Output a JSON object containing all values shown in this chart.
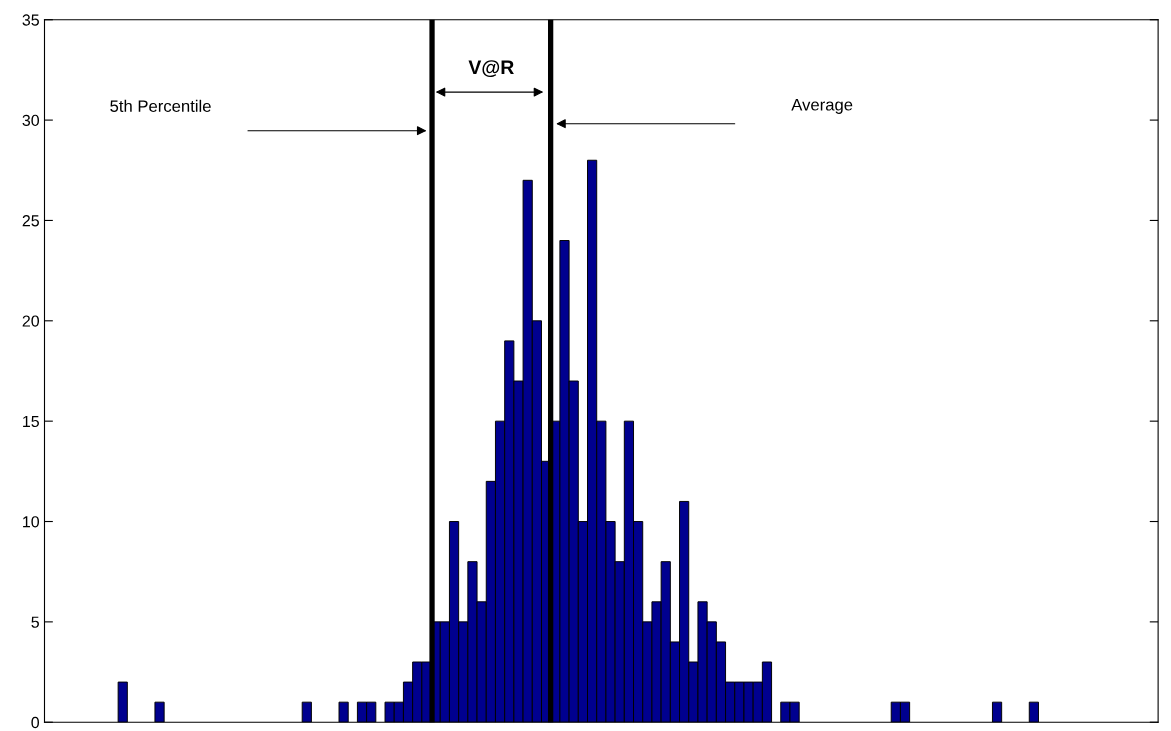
{
  "chart_data": {
    "type": "bar",
    "categories": [
      null,
      null,
      null,
      null,
      null,
      null,
      null,
      null,
      null,
      null,
      null,
      null,
      null,
      null,
      null,
      null,
      null,
      null,
      null,
      null,
      null,
      null,
      null,
      null,
      null,
      null,
      null,
      null,
      null,
      null,
      null,
      null,
      null,
      null,
      null,
      null,
      null,
      null,
      null,
      null,
      null,
      null,
      null,
      null,
      null,
      null,
      null,
      null,
      null,
      null,
      null,
      null,
      null,
      null,
      null,
      null,
      null,
      null,
      null,
      null,
      null,
      null,
      null,
      null,
      null,
      null,
      null,
      null,
      null,
      null,
      null,
      null,
      null,
      null,
      null,
      null,
      null,
      null,
      null,
      null,
      null,
      null,
      null,
      null,
      null,
      null,
      null,
      null,
      null,
      null,
      null,
      null,
      null,
      null,
      null,
      null,
      null,
      null,
      null,
      null,
      null,
      null,
      null,
      null,
      null,
      null,
      null,
      null,
      null,
      null,
      null,
      null,
      null,
      null,
      null,
      null,
      null,
      null,
      null,
      null,
      null
    ],
    "values": [
      0,
      0,
      0,
      0,
      0,
      0,
      0,
      0,
      2,
      0,
      0,
      0,
      1,
      0,
      0,
      0,
      0,
      0,
      0,
      0,
      0,
      0,
      0,
      0,
      0,
      0,
      0,
      0,
      1,
      0,
      0,
      0,
      1,
      0,
      1,
      1,
      0,
      1,
      1,
      2,
      3,
      3,
      5,
      5,
      10,
      5,
      8,
      6,
      12,
      15,
      19,
      17,
      27,
      20,
      13,
      15,
      24,
      17,
      10,
      28,
      15,
      10,
      8,
      15,
      10,
      5,
      6,
      8,
      4,
      11,
      3,
      6,
      5,
      4,
      2,
      2,
      2,
      2,
      3,
      0,
      1,
      1,
      0,
      0,
      0,
      0,
      0,
      0,
      0,
      0,
      0,
      0,
      1,
      1,
      0,
      0,
      0,
      0,
      0,
      0,
      0,
      0,
      0,
      1,
      0,
      0,
      0,
      1,
      0,
      0,
      0,
      0,
      0,
      0,
      0,
      0,
      0,
      0,
      0,
      0,
      0
    ],
    "color": "#00008f",
    "ylim": [
      0,
      35
    ],
    "yticks": [
      0,
      5,
      10,
      15,
      20,
      25,
      30,
      35
    ],
    "annotations": [
      "5th Percentile",
      "Average",
      "V@R"
    ]
  }
}
